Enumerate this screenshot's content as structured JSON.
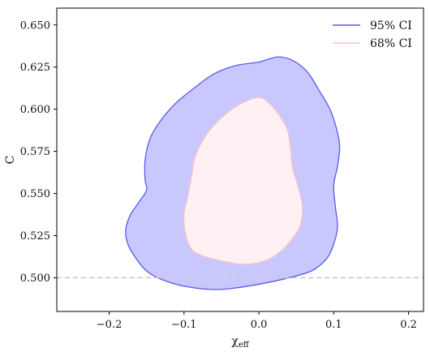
{
  "chart_data": {
    "type": "area",
    "title": "",
    "xlabel": "χ_eff",
    "xlabel_main": "χ",
    "xlabel_sub": "eff",
    "ylabel": "C",
    "xlim": [
      -0.27,
      0.22
    ],
    "ylim": [
      0.48,
      0.66
    ],
    "xticks": [
      -0.2,
      -0.1,
      0.0,
      0.1,
      0.2
    ],
    "xtick_labels": [
      "−0.2",
      "−0.1",
      "0.0",
      "0.1",
      "0.2"
    ],
    "yticks": [
      0.5,
      0.525,
      0.55,
      0.575,
      0.6,
      0.625,
      0.65
    ],
    "ytick_labels": [
      "0.500",
      "0.525",
      "0.550",
      "0.575",
      "0.600",
      "0.625",
      "0.650"
    ],
    "grid": false,
    "legend_position": "top-right",
    "reference_line": {
      "y": 0.5,
      "style": "dashed",
      "color": "#c8c8c8"
    },
    "series": [
      {
        "name": "95% CI",
        "fill": "#c8c8ff",
        "edge": "#5a5aec",
        "contour": [
          [
            0.025,
            0.631
          ],
          [
            0.045,
            0.629
          ],
          [
            0.065,
            0.622
          ],
          [
            0.082,
            0.61
          ],
          [
            0.095,
            0.6
          ],
          [
            0.104,
            0.588
          ],
          [
            0.108,
            0.578
          ],
          [
            0.105,
            0.566
          ],
          [
            0.1,
            0.555
          ],
          [
            0.102,
            0.543
          ],
          [
            0.105,
            0.53
          ],
          [
            0.1,
            0.52
          ],
          [
            0.09,
            0.511
          ],
          [
            0.07,
            0.504
          ],
          [
            0.04,
            0.5
          ],
          [
            0.01,
            0.497
          ],
          [
            -0.03,
            0.494
          ],
          [
            -0.06,
            0.493
          ],
          [
            -0.1,
            0.495
          ],
          [
            -0.13,
            0.499
          ],
          [
            -0.15,
            0.504
          ],
          [
            -0.165,
            0.512
          ],
          [
            -0.175,
            0.52
          ],
          [
            -0.178,
            0.528
          ],
          [
            -0.172,
            0.537
          ],
          [
            -0.16,
            0.545
          ],
          [
            -0.15,
            0.552
          ],
          [
            -0.152,
            0.558
          ],
          [
            -0.152,
            0.57
          ],
          [
            -0.145,
            0.583
          ],
          [
            -0.13,
            0.594
          ],
          [
            -0.11,
            0.604
          ],
          [
            -0.085,
            0.613
          ],
          [
            -0.06,
            0.621
          ],
          [
            -0.03,
            0.626
          ],
          [
            0.0,
            0.628
          ]
        ]
      },
      {
        "name": "68% CI",
        "fill": "#fff0f3",
        "edge": "#ffc0cb",
        "contour": [
          [
            0.0,
            0.607
          ],
          [
            0.015,
            0.603
          ],
          [
            0.028,
            0.596
          ],
          [
            0.038,
            0.588
          ],
          [
            0.042,
            0.578
          ],
          [
            0.045,
            0.565
          ],
          [
            0.052,
            0.555
          ],
          [
            0.058,
            0.543
          ],
          [
            0.056,
            0.532
          ],
          [
            0.046,
            0.524
          ],
          [
            0.03,
            0.516
          ],
          [
            0.008,
            0.51
          ],
          [
            -0.02,
            0.508
          ],
          [
            -0.05,
            0.51
          ],
          [
            -0.075,
            0.513
          ],
          [
            -0.09,
            0.517
          ],
          [
            -0.098,
            0.526
          ],
          [
            -0.1,
            0.538
          ],
          [
            -0.095,
            0.548
          ],
          [
            -0.09,
            0.56
          ],
          [
            -0.085,
            0.572
          ],
          [
            -0.07,
            0.585
          ],
          [
            -0.05,
            0.595
          ],
          [
            -0.025,
            0.603
          ]
        ]
      }
    ]
  }
}
